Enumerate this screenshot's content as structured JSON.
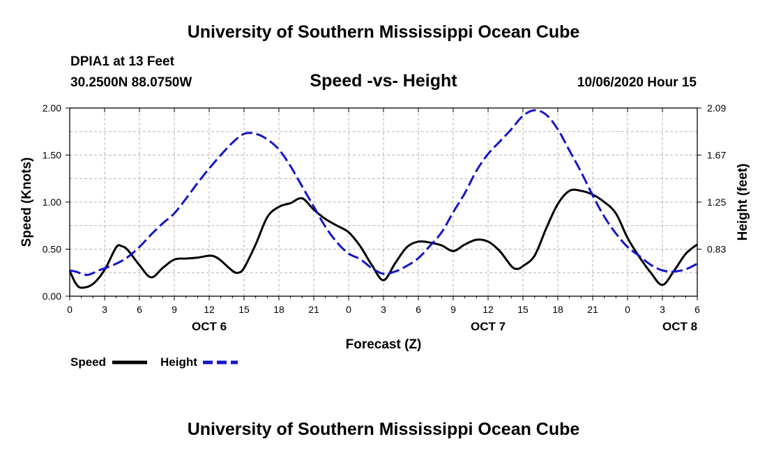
{
  "page": {
    "title_top": "University of Southern Mississippi Ocean Cube",
    "title_bottom": "University of Southern Mississippi Ocean Cube",
    "station": "DPIA1 at 13 Feet",
    "coordinates": "30.2500N 88.0750W",
    "date_hour": "10/06/2020 Hour 15"
  },
  "chart_data": {
    "type": "line",
    "title": "Speed -vs- Height",
    "xlabel": "Forecast (Z)",
    "ylabel_left": "Speed (Knots)",
    "ylabel_right": "Height (feet)",
    "x_unit": "forecast hour",
    "xlim": [
      0,
      54
    ],
    "ylim_left": [
      0,
      2
    ],
    "ylim_right": [
      0.41,
      2.09
    ],
    "x_ticks": [
      0,
      3,
      6,
      9,
      12,
      15,
      18,
      21,
      24,
      27,
      30,
      33,
      36,
      39,
      42,
      45,
      48,
      51,
      54
    ],
    "x_tick_labels": [
      "0",
      "3",
      "6",
      "9",
      "12",
      "15",
      "18",
      "21",
      "0",
      "3",
      "6",
      "9",
      "12",
      "15",
      "18",
      "21",
      "0",
      "3",
      "6"
    ],
    "y_ticks_left": [
      0,
      0.5,
      1,
      1.5,
      2
    ],
    "y_tick_labels_left": [
      "0.00",
      "0.50",
      "1.00",
      "1.50",
      "2.00"
    ],
    "y_ticks_right": [
      0.83,
      1.25,
      1.67,
      2.09
    ],
    "y_tick_labels_right": [
      "0.83",
      "1.25",
      "1.67",
      "2.09"
    ],
    "day_labels": [
      {
        "x": 12,
        "label": "OCT 6"
      },
      {
        "x": 36,
        "label": "OCT 7"
      },
      {
        "x": 52.5,
        "label": "OCT 8"
      }
    ],
    "grid": true,
    "legend": {
      "position": "bottom-left",
      "entries": [
        "Speed",
        "Height"
      ]
    },
    "series": [
      {
        "name": "Speed",
        "axis": "left",
        "color": "#000000",
        "dash": "solid",
        "points": [
          [
            0,
            0.27
          ],
          [
            0.5,
            0.14
          ],
          [
            1,
            0.09
          ],
          [
            2,
            0.13
          ],
          [
            3,
            0.28
          ],
          [
            4,
            0.52
          ],
          [
            4.5,
            0.53
          ],
          [
            5,
            0.49
          ],
          [
            6,
            0.33
          ],
          [
            7,
            0.2
          ],
          [
            8,
            0.3
          ],
          [
            9,
            0.39
          ],
          [
            10,
            0.4
          ],
          [
            11,
            0.41
          ],
          [
            12,
            0.43
          ],
          [
            12.5,
            0.42
          ],
          [
            13,
            0.38
          ],
          [
            14,
            0.27
          ],
          [
            14.5,
            0.25
          ],
          [
            15,
            0.3
          ],
          [
            16,
            0.55
          ],
          [
            17,
            0.84
          ],
          [
            18,
            0.95
          ],
          [
            19,
            0.99
          ],
          [
            20,
            1.04
          ],
          [
            21,
            0.92
          ],
          [
            22,
            0.82
          ],
          [
            23,
            0.75
          ],
          [
            24,
            0.68
          ],
          [
            25,
            0.53
          ],
          [
            26,
            0.33
          ],
          [
            27,
            0.17
          ],
          [
            28,
            0.35
          ],
          [
            29,
            0.52
          ],
          [
            30,
            0.58
          ],
          [
            31,
            0.57
          ],
          [
            32,
            0.54
          ],
          [
            33,
            0.48
          ],
          [
            34,
            0.55
          ],
          [
            35,
            0.6
          ],
          [
            36,
            0.58
          ],
          [
            37,
            0.48
          ],
          [
            38,
            0.32
          ],
          [
            38.5,
            0.29
          ],
          [
            39,
            0.32
          ],
          [
            40,
            0.43
          ],
          [
            41,
            0.72
          ],
          [
            42,
            0.98
          ],
          [
            43,
            1.12
          ],
          [
            44,
            1.12
          ],
          [
            45,
            1.08
          ],
          [
            46,
            1.0
          ],
          [
            47,
            0.88
          ],
          [
            48,
            0.62
          ],
          [
            49,
            0.42
          ],
          [
            50,
            0.25
          ],
          [
            51,
            0.12
          ],
          [
            52,
            0.27
          ],
          [
            53,
            0.45
          ],
          [
            54,
            0.55
          ]
        ]
      },
      {
        "name": "Height",
        "axis": "right",
        "color": "#1414c8",
        "dash": "dashed",
        "points": [
          [
            0,
            0.64
          ],
          [
            0.5,
            0.63
          ],
          [
            1.5,
            0.6
          ],
          [
            2.5,
            0.64
          ],
          [
            4,
            0.7
          ],
          [
            5,
            0.76
          ],
          [
            6,
            0.85
          ],
          [
            7,
            0.96
          ],
          [
            8,
            1.06
          ],
          [
            9,
            1.15
          ],
          [
            10,
            1.28
          ],
          [
            11,
            1.42
          ],
          [
            12,
            1.55
          ],
          [
            13,
            1.67
          ],
          [
            14,
            1.78
          ],
          [
            15,
            1.86
          ],
          [
            16,
            1.86
          ],
          [
            17,
            1.81
          ],
          [
            18,
            1.72
          ],
          [
            19,
            1.57
          ],
          [
            20,
            1.39
          ],
          [
            21,
            1.21
          ],
          [
            22,
            1.03
          ],
          [
            23,
            0.89
          ],
          [
            24,
            0.79
          ],
          [
            25,
            0.74
          ],
          [
            26,
            0.66
          ],
          [
            27,
            0.61
          ],
          [
            28,
            0.63
          ],
          [
            29,
            0.68
          ],
          [
            30,
            0.75
          ],
          [
            31,
            0.86
          ],
          [
            32,
            0.98
          ],
          [
            33,
            1.16
          ],
          [
            34,
            1.33
          ],
          [
            35,
            1.53
          ],
          [
            36,
            1.68
          ],
          [
            37,
            1.79
          ],
          [
            38,
            1.9
          ],
          [
            39,
            2.02
          ],
          [
            40,
            2.07
          ],
          [
            41,
            2.03
          ],
          [
            42,
            1.9
          ],
          [
            43,
            1.71
          ],
          [
            44,
            1.52
          ],
          [
            45,
            1.31
          ],
          [
            46,
            1.12
          ],
          [
            47,
            0.97
          ],
          [
            48,
            0.85
          ],
          [
            49,
            0.77
          ],
          [
            50,
            0.69
          ],
          [
            51,
            0.64
          ],
          [
            52,
            0.63
          ],
          [
            53,
            0.65
          ],
          [
            54,
            0.7
          ]
        ]
      }
    ]
  }
}
